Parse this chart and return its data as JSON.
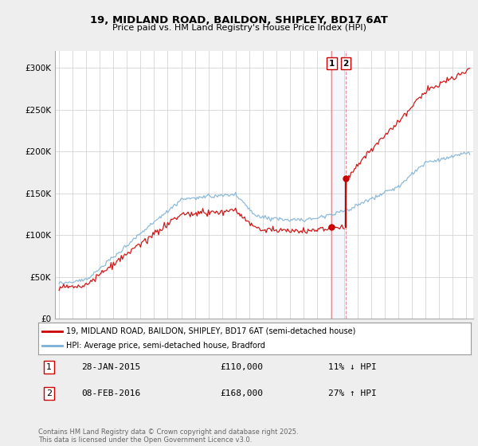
{
  "title1": "19, MIDLAND ROAD, BAILDON, SHIPLEY, BD17 6AT",
  "title2": "Price paid vs. HM Land Registry's House Price Index (HPI)",
  "legend1": "19, MIDLAND ROAD, BAILDON, SHIPLEY, BD17 6AT (semi-detached house)",
  "legend2": "HPI: Average price, semi-detached house, Bradford",
  "transaction1_date": "28-JAN-2015",
  "transaction1_price": 110000,
  "transaction1_hpi": "11% ↓ HPI",
  "transaction2_date": "08-FEB-2016",
  "transaction2_price": 168000,
  "transaction2_hpi": "27% ↑ HPI",
  "footnote": "Contains HM Land Registry data © Crown copyright and database right 2025.\nThis data is licensed under the Open Government Licence v3.0.",
  "hpi_color": "#7bafd4",
  "price_color": "#cc0000",
  "background_color": "#eeeeee",
  "plot_bg_color": "#ffffff",
  "ylim_min": 0,
  "ylim_max": 320000,
  "yticks": [
    0,
    50000,
    100000,
    150000,
    200000,
    250000,
    300000
  ],
  "ylabels": [
    "£0",
    "£50K",
    "£100K",
    "£150K",
    "£200K",
    "£250K",
    "£300K"
  ],
  "start_year": 1995,
  "end_year": 2025,
  "t1": 2015.08,
  "t2": 2016.12,
  "t1_price": 110000,
  "t2_price": 168000,
  "t1_hpi_price": 123000,
  "t2_hpi_price": 133000
}
